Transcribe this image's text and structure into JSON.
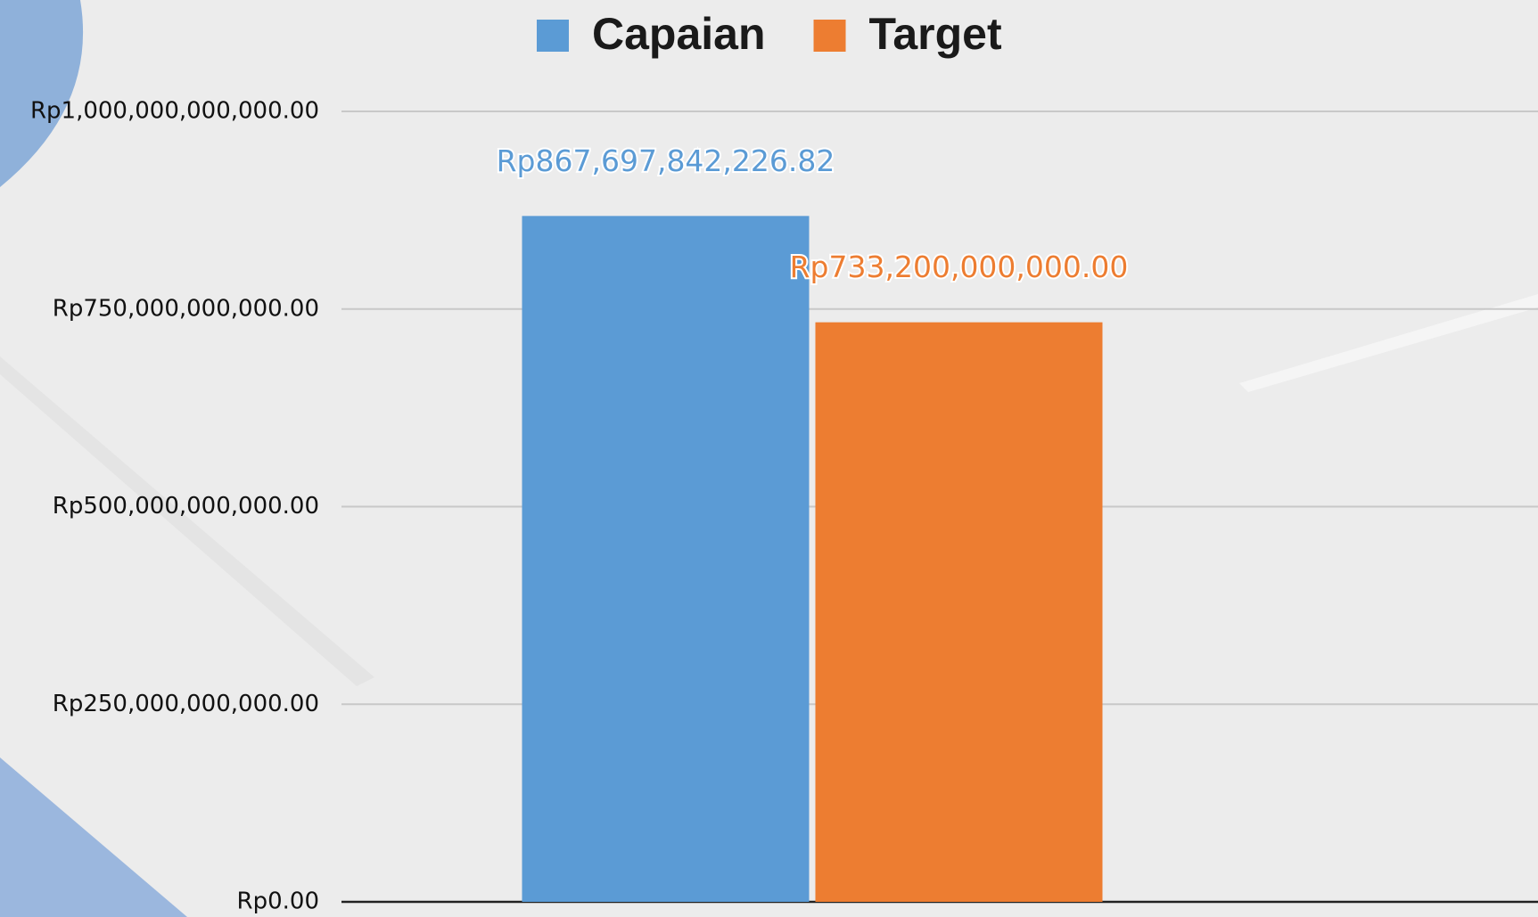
{
  "chart_data": {
    "type": "bar",
    "categories": [
      null
    ],
    "series": [
      {
        "name": "Capaian",
        "color": "#5b9bd5",
        "values": [
          867697842226.82
        ],
        "value_labels": [
          "Rp867,697,842,226.82"
        ]
      },
      {
        "name": "Target",
        "color": "#ed7d31",
        "values": [
          733200000000
        ],
        "value_labels": [
          "Rp733,200,000,000.00"
        ]
      }
    ],
    "ylim": [
      0,
      1000000000000
    ],
    "yticks": [
      {
        "value": 0,
        "label": "Rp0.00"
      },
      {
        "value": 250000000000,
        "label": "Rp250,000,000,000.00"
      },
      {
        "value": 500000000000,
        "label": "Rp500,000,000,000.00"
      },
      {
        "value": 750000000000,
        "label": "Rp750,000,000,000.00"
      },
      {
        "value": 1000000000000,
        "label": "Rp1,000,000,000,000.00"
      }
    ],
    "grid": true,
    "legend": "top"
  }
}
